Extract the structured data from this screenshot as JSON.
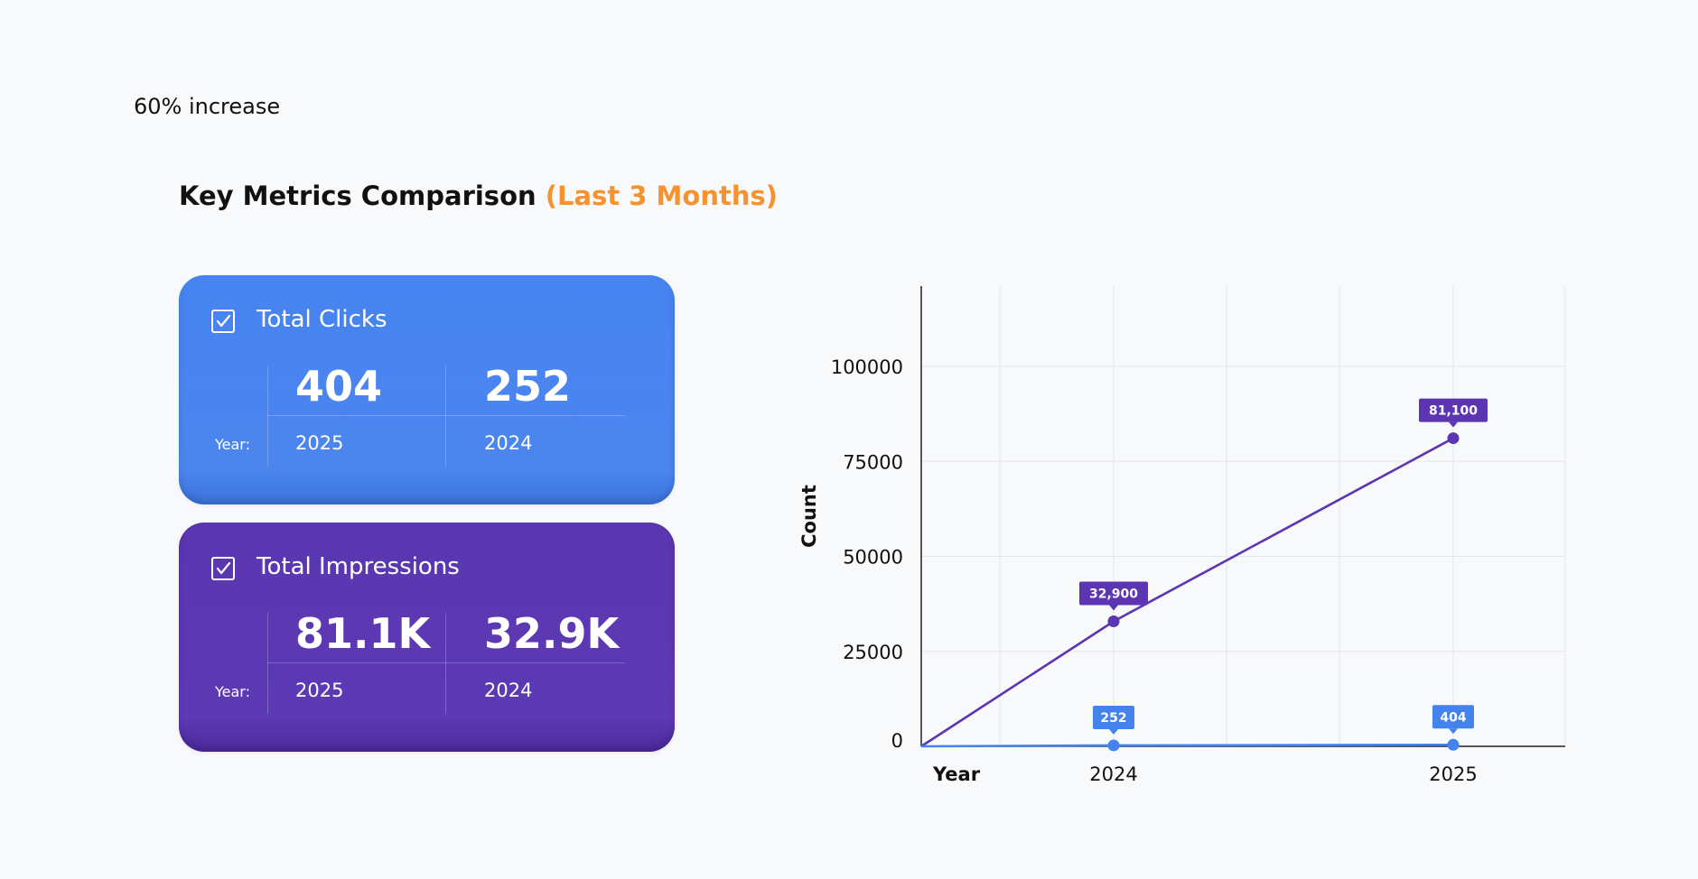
{
  "header": {
    "increase_text": "60% increase",
    "title": "Key Metrics Comparison",
    "title_accent": "(Last 3 Months)",
    "accent_color": "#f59331"
  },
  "cards": [
    {
      "title": "Total Clicks",
      "color": "#4784f1",
      "checked": true,
      "value_current": "404",
      "value_previous": "252",
      "year_label": "Year:",
      "year_current": "2025",
      "year_previous": "2024"
    },
    {
      "title": "Total Impressions",
      "color": "#5a36b0",
      "checked": true,
      "value_current": "81.1K",
      "value_previous": "32.9K",
      "year_label": "Year:",
      "year_current": "2025",
      "year_previous": "2024"
    }
  ],
  "chart_data": {
    "type": "line",
    "x": [
      "2024",
      "2025"
    ],
    "xlabel": "Year",
    "ylabel": "Count",
    "yticks": [
      0,
      25000,
      50000,
      75000,
      100000
    ],
    "ylim": [
      0,
      120000
    ],
    "grid": true,
    "series": [
      {
        "color": "#5c35b3",
        "values": [
          32900,
          81100
        ],
        "labels": [
          "32,900",
          "81,100"
        ]
      },
      {
        "color": "#4483ed",
        "values": [
          252,
          404
        ],
        "labels": [
          "252",
          "404"
        ]
      }
    ]
  }
}
